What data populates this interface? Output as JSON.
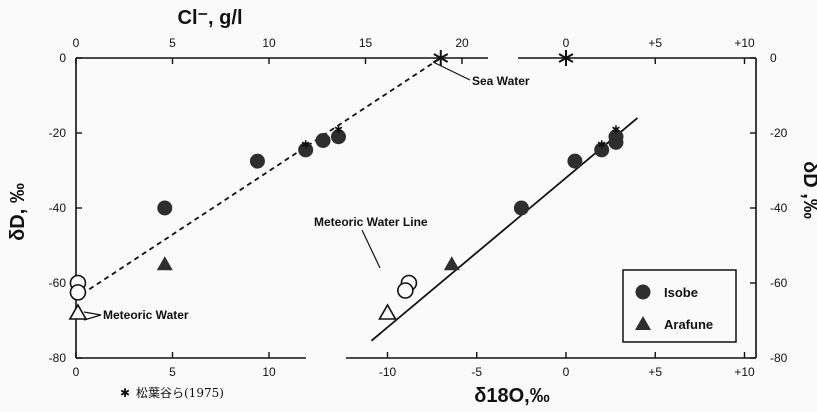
{
  "chart_data": [
    {
      "type": "scatter",
      "panel": "left",
      "xlabel": "Cl⁻, g/l",
      "ylabel": "δD, ‰",
      "xlim": [
        0,
        21
      ],
      "ylim": [
        -80,
        0
      ],
      "x_ticks": [
        "0",
        "5",
        "10",
        "15",
        "20"
      ],
      "y_ticks": [
        "0",
        "-20",
        "-40",
        "-60",
        "-80"
      ],
      "x_ticks_bottom": [
        "0",
        "5",
        "10"
      ],
      "series": [
        {
          "name": "Isobe",
          "marker": "filled-circle",
          "points": [
            [
              4.6,
              -40
            ],
            [
              9.4,
              -27.5
            ],
            [
              11.9,
              -24.5
            ],
            [
              12.8,
              -22
            ],
            [
              13.6,
              -21
            ]
          ]
        },
        {
          "name": "Arafune",
          "marker": "filled-triangle",
          "points": [
            [
              4.6,
              -55
            ]
          ]
        },
        {
          "marker": "open-circle",
          "points": [
            [
              0.1,
              -60
            ],
            [
              0.1,
              -62.5
            ]
          ]
        },
        {
          "marker": "open-triangle",
          "points": [
            [
              0.1,
              -68
            ]
          ]
        },
        {
          "marker": "asterisk",
          "points": [
            [
              11.9,
              -23
            ],
            [
              13.6,
              -19
            ],
            [
              18.9,
              0
            ]
          ]
        }
      ],
      "mixing_line": [
        [
          0.3,
          -63
        ],
        [
          18.9,
          0
        ]
      ],
      "annotations": {
        "sea_water": "Sea Water",
        "meteoric_water": "Meteoric Water"
      }
    },
    {
      "type": "scatter",
      "panel": "right",
      "xlabel": "δ18O,‰",
      "ylabel": "δD ,‰",
      "xlim": [
        -11,
        10
      ],
      "ylim": [
        -80,
        0
      ],
      "x_ticks": [
        "-10",
        "-5",
        "0",
        "+5",
        "+10"
      ],
      "x_ticks_top": [
        "0",
        "+5",
        "+10"
      ],
      "y_ticks": [
        "0",
        "-20",
        "-40",
        "-60",
        "-80"
      ],
      "series": [
        {
          "name": "Isobe",
          "marker": "filled-circle",
          "points": [
            [
              -2.5,
              -40
            ],
            [
              0.5,
              -27.5
            ],
            [
              2.0,
              -24.5
            ],
            [
              2.8,
              -22.5
            ],
            [
              2.8,
              -21
            ]
          ]
        },
        {
          "name": "Arafune",
          "marker": "filled-triangle",
          "points": [
            [
              -6.4,
              -55
            ]
          ]
        },
        {
          "marker": "open-circle",
          "points": [
            [
              -8.8,
              -60
            ],
            [
              -9.0,
              -62
            ]
          ]
        },
        {
          "marker": "open-triangle",
          "points": [
            [
              -10.0,
              -68
            ]
          ]
        },
        {
          "marker": "asterisk",
          "points": [
            [
              2.0,
              -23
            ],
            [
              2.8,
              -19
            ],
            [
              0,
              0
            ]
          ]
        }
      ],
      "meteoric_water_line": [
        [
          -10.9,
          -75.4
        ],
        [
          4.0,
          -16
        ]
      ],
      "annotations": {
        "meteoric_water_line": "Meteoric Water Line"
      }
    }
  ],
  "legend": {
    "position": "bottom-right",
    "items": [
      {
        "label": "Isobe",
        "marker": "filled-circle"
      },
      {
        "label": "Arafune",
        "marker": "filled-triangle"
      }
    ]
  },
  "footnote": {
    "symbol": "✱",
    "text": "松葉谷ら(1975)"
  }
}
